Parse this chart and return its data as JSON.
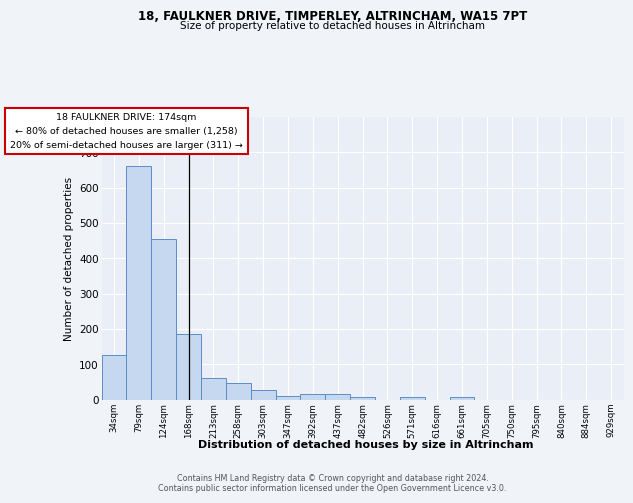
{
  "title1": "18, FAULKNER DRIVE, TIMPERLEY, ALTRINCHAM, WA15 7PT",
  "title2": "Size of property relative to detached houses in Altrincham",
  "xlabel": "Distribution of detached houses by size in Altrincham",
  "ylabel": "Number of detached properties",
  "footer1": "Contains HM Land Registry data © Crown copyright and database right 2024.",
  "footer2": "Contains public sector information licensed under the Open Government Licence v3.0.",
  "categories": [
    "34sqm",
    "79sqm",
    "124sqm",
    "168sqm",
    "213sqm",
    "258sqm",
    "303sqm",
    "347sqm",
    "392sqm",
    "437sqm",
    "482sqm",
    "526sqm",
    "571sqm",
    "616sqm",
    "661sqm",
    "705sqm",
    "750sqm",
    "795sqm",
    "840sqm",
    "884sqm",
    "929sqm"
  ],
  "values": [
    125,
    660,
    455,
    185,
    60,
    47,
    28,
    11,
    15,
    15,
    8,
    0,
    8,
    0,
    8,
    0,
    0,
    0,
    0,
    0,
    0
  ],
  "bar_color": "#c5d8ef",
  "bar_edge_color": "#5b8dc8",
  "highlight_index": 3,
  "property_label": "18 FAULKNER DRIVE: 174sqm",
  "annotation_line1": "← 80% of detached houses are smaller (1,258)",
  "annotation_line2": "20% of semi-detached houses are larger (311) →",
  "annotation_box_color": "#ffffff",
  "annotation_box_edge": "#cc0000",
  "ylim": [
    0,
    800
  ],
  "yticks": [
    0,
    100,
    200,
    300,
    400,
    500,
    600,
    700,
    800
  ],
  "bg_color": "#f0f3f8",
  "plot_bg_color": "#eaeff7",
  "grid_color": "#ffffff"
}
